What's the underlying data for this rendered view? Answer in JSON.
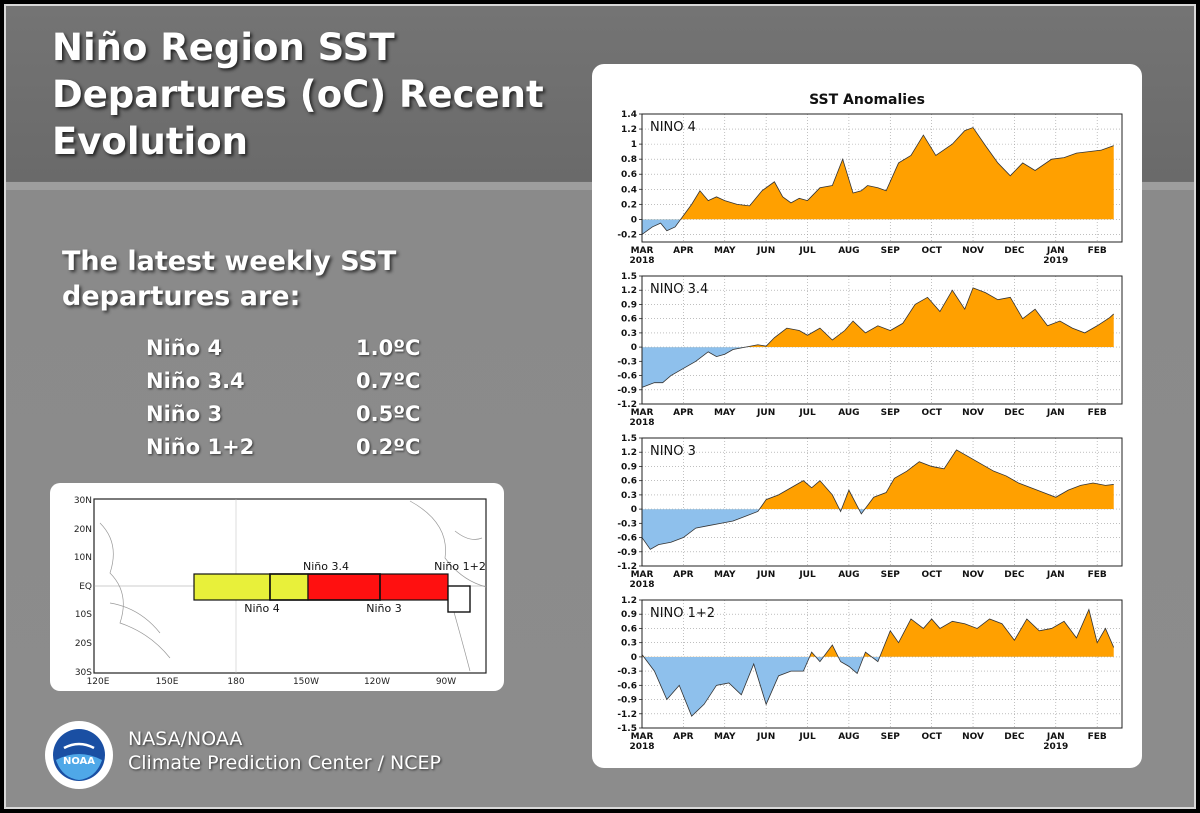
{
  "slide": {
    "title_lines": [
      "Niño Region SST",
      "Departures (oC) Recent",
      "Evolution"
    ],
    "subtitle_lines": [
      "The latest weekly SST",
      "departures are:"
    ],
    "readings": [
      {
        "region": "Niño 4",
        "value": "1.0ºC"
      },
      {
        "region": "Niño 3.4",
        "value": "0.7ºC"
      },
      {
        "region": "Niño 3",
        "value": "0.5ºC"
      },
      {
        "region": "Niño 1+2",
        "value": "0.2ºC"
      }
    ],
    "credit_line1": "NASA/NOAA",
    "credit_line2": "Climate Prediction Center / NCEP",
    "noaa_logo_text": "NOAA"
  },
  "region_map": {
    "lat_labels": [
      "30N",
      "20N",
      "10N",
      "EQ",
      "10S",
      "20S",
      "30S"
    ],
    "lon_labels": [
      "120E",
      "150E",
      "180",
      "150W",
      "120W",
      "90W"
    ],
    "region_labels": [
      "Niño 3.4",
      "Niño 1+2",
      "Niño 4",
      "Niño 3"
    ],
    "colors": {
      "nino4": "#e8f03a",
      "nino3": "#ff1010",
      "nino12": "#ffffff"
    }
  },
  "chart_data": {
    "type": "area",
    "title": "SST Anomalies",
    "months": [
      "MAR",
      "APR",
      "MAY",
      "JUN",
      "JUL",
      "AUG",
      "SEP",
      "OCT",
      "NOV",
      "DEC",
      "JAN",
      "FEB"
    ],
    "year_labels": {
      "MAR": "2018",
      "JAN": "2019"
    },
    "colors": {
      "positive": "#ffa000",
      "negative": "#8ec0ec",
      "line": "#333333"
    },
    "panels": [
      {
        "name": "NINO 4",
        "ylim": [
          -0.3,
          1.4
        ],
        "ticks": [
          "-0.2",
          "0",
          "0.2",
          "0.4",
          "0.6",
          "0.8",
          "1",
          "1.2",
          "1.4"
        ],
        "tick_values": [
          -0.2,
          0,
          0.2,
          0.4,
          0.6,
          0.8,
          1.0,
          1.2,
          1.4
        ],
        "x": [
          0,
          0.25,
          0.45,
          0.6,
          0.8,
          1.0,
          1.2,
          1.4,
          1.6,
          1.8,
          2.0,
          2.3,
          2.6,
          2.9,
          3.2,
          3.4,
          3.6,
          3.8,
          4.0,
          4.3,
          4.6,
          4.85,
          5.1,
          5.3,
          5.45,
          5.7,
          5.9,
          6.2,
          6.5,
          6.8,
          7.1,
          7.5,
          7.8,
          8.0,
          8.3,
          8.6,
          8.9,
          9.2,
          9.5,
          9.9,
          10.2,
          10.5,
          10.8,
          11.1,
          11.4
        ],
        "y": [
          -0.2,
          -0.1,
          -0.05,
          -0.15,
          -0.1,
          0.05,
          0.2,
          0.38,
          0.25,
          0.3,
          0.25,
          0.2,
          0.18,
          0.38,
          0.5,
          0.3,
          0.22,
          0.28,
          0.25,
          0.42,
          0.45,
          0.8,
          0.35,
          0.38,
          0.45,
          0.42,
          0.38,
          0.75,
          0.85,
          1.12,
          0.85,
          1.0,
          1.18,
          1.22,
          0.98,
          0.75,
          0.58,
          0.75,
          0.65,
          0.8,
          0.82,
          0.88,
          0.9,
          0.92,
          0.98
        ]
      },
      {
        "name": "NINO 3.4",
        "ylim": [
          -1.2,
          1.5
        ],
        "ticks": [
          "-1.2",
          "-0.9",
          "-0.6",
          "-0.3",
          "0",
          "0.3",
          "0.6",
          "0.9",
          "1.2",
          "1.5"
        ],
        "tick_values": [
          -1.2,
          -0.9,
          -0.6,
          -0.3,
          0,
          0.3,
          0.6,
          0.9,
          1.2,
          1.5
        ],
        "x": [
          0,
          0.3,
          0.5,
          0.7,
          1.0,
          1.3,
          1.6,
          1.8,
          2.0,
          2.2,
          2.5,
          2.8,
          3.0,
          3.2,
          3.5,
          3.8,
          4.0,
          4.3,
          4.6,
          4.9,
          5.1,
          5.4,
          5.7,
          6.0,
          6.3,
          6.6,
          6.9,
          7.2,
          7.5,
          7.8,
          8.0,
          8.3,
          8.6,
          8.9,
          9.2,
          9.5,
          9.8,
          10.1,
          10.4,
          10.7,
          11.0,
          11.3,
          11.4
        ],
        "y": [
          -0.85,
          -0.75,
          -0.75,
          -0.6,
          -0.45,
          -0.3,
          -0.1,
          -0.2,
          -0.15,
          -0.05,
          0.0,
          0.05,
          0.02,
          0.2,
          0.4,
          0.35,
          0.25,
          0.4,
          0.15,
          0.35,
          0.55,
          0.3,
          0.45,
          0.35,
          0.5,
          0.9,
          1.05,
          0.75,
          1.2,
          0.8,
          1.25,
          1.15,
          1.0,
          1.05,
          0.6,
          0.8,
          0.45,
          0.55,
          0.4,
          0.3,
          0.45,
          0.62,
          0.7
        ]
      },
      {
        "name": "NINO 3",
        "ylim": [
          -1.2,
          1.5
        ],
        "ticks": [
          "-1.2",
          "-0.9",
          "-0.6",
          "-0.3",
          "0",
          "0.3",
          "0.6",
          "0.9",
          "1.2",
          "1.5"
        ],
        "tick_values": [
          -1.2,
          -0.9,
          -0.6,
          -0.3,
          0,
          0.3,
          0.6,
          0.9,
          1.2,
          1.5
        ],
        "x": [
          0,
          0.2,
          0.4,
          0.7,
          1.0,
          1.3,
          1.6,
          1.9,
          2.2,
          2.5,
          2.8,
          3.0,
          3.3,
          3.6,
          3.9,
          4.1,
          4.3,
          4.6,
          4.8,
          5.0,
          5.3,
          5.6,
          5.9,
          6.1,
          6.4,
          6.7,
          7.0,
          7.3,
          7.6,
          7.9,
          8.2,
          8.5,
          8.8,
          9.1,
          9.4,
          9.7,
          10.0,
          10.3,
          10.6,
          10.9,
          11.2,
          11.4
        ],
        "y": [
          -0.6,
          -0.85,
          -0.75,
          -0.7,
          -0.6,
          -0.4,
          -0.35,
          -0.3,
          -0.25,
          -0.15,
          -0.05,
          0.2,
          0.3,
          0.45,
          0.6,
          0.45,
          0.6,
          0.3,
          -0.05,
          0.4,
          -0.1,
          0.25,
          0.35,
          0.65,
          0.8,
          1.0,
          0.9,
          0.85,
          1.25,
          1.1,
          0.95,
          0.8,
          0.7,
          0.55,
          0.45,
          0.35,
          0.25,
          0.4,
          0.5,
          0.55,
          0.5,
          0.52
        ]
      },
      {
        "name": "NINO 1+2",
        "ylim": [
          -1.5,
          1.2
        ],
        "ticks": [
          "-1.5",
          "-1.2",
          "-0.9",
          "-0.6",
          "-0.3",
          "0",
          "0.3",
          "0.6",
          "0.9",
          "1.2"
        ],
        "tick_values": [
          -1.5,
          -1.2,
          -0.9,
          -0.6,
          -0.3,
          0,
          0.3,
          0.6,
          0.9,
          1.2
        ],
        "x": [
          0,
          0.3,
          0.6,
          0.9,
          1.2,
          1.5,
          1.8,
          2.1,
          2.4,
          2.7,
          3.0,
          3.3,
          3.6,
          3.9,
          4.1,
          4.3,
          4.6,
          4.8,
          5.0,
          5.2,
          5.4,
          5.7,
          6.0,
          6.2,
          6.5,
          6.8,
          7.0,
          7.2,
          7.5,
          7.8,
          8.1,
          8.4,
          8.7,
          9.0,
          9.3,
          9.6,
          9.9,
          10.2,
          10.5,
          10.8,
          11.0,
          11.2,
          11.4
        ],
        "y": [
          0.05,
          -0.3,
          -0.9,
          -0.6,
          -1.25,
          -1.0,
          -0.6,
          -0.55,
          -0.8,
          -0.15,
          -1.0,
          -0.4,
          -0.3,
          -0.3,
          0.1,
          -0.1,
          0.25,
          -0.1,
          -0.2,
          -0.35,
          0.1,
          -0.1,
          0.55,
          0.3,
          0.8,
          0.6,
          0.8,
          0.6,
          0.75,
          0.7,
          0.6,
          0.8,
          0.7,
          0.35,
          0.8,
          0.55,
          0.6,
          0.75,
          0.4,
          1.0,
          0.3,
          0.6,
          0.2
        ]
      }
    ]
  }
}
